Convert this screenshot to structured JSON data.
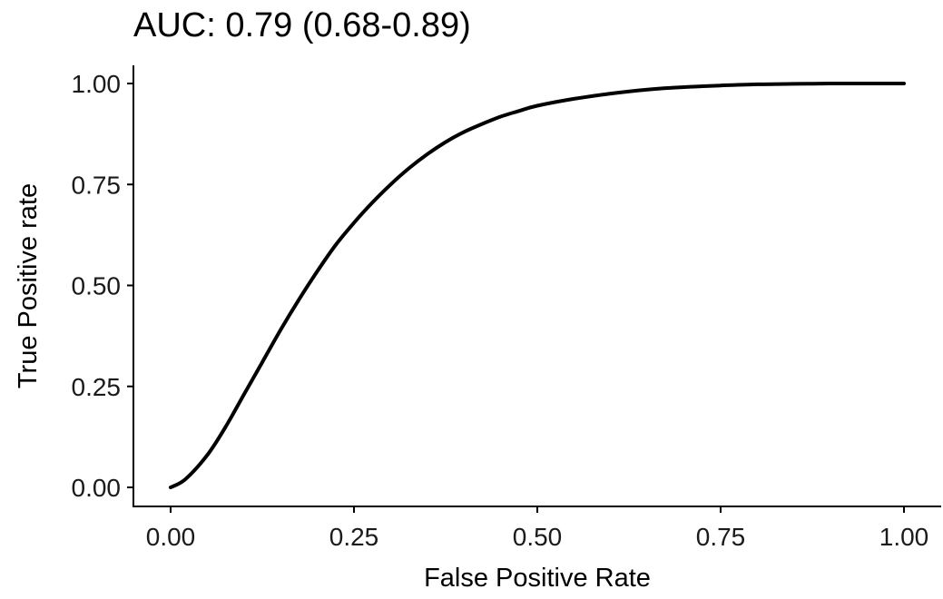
{
  "chart_data": {
    "type": "line",
    "title": "AUC: 0.79 (0.68-0.89)",
    "xlabel": "False Positive Rate",
    "ylabel": "True Positive rate",
    "xlim": [
      0,
      1
    ],
    "ylim": [
      0,
      1
    ],
    "x_ticks": [
      0,
      0.25,
      0.5,
      0.75,
      1
    ],
    "y_ticks": [
      0,
      0.25,
      0.5,
      0.75,
      1
    ],
    "x_tick_labels": [
      "0.00",
      "0.25",
      "0.50",
      "0.75",
      "1.00"
    ],
    "y_tick_labels": [
      "0.00",
      "0.25",
      "0.50",
      "0.75",
      "1.00"
    ],
    "grid": false,
    "legend": "none",
    "series": [
      {
        "color": "#000000",
        "x": [
          0.0,
          0.02,
          0.05,
          0.075,
          0.1,
          0.125,
          0.15,
          0.175,
          0.2,
          0.225,
          0.25,
          0.275,
          0.3,
          0.325,
          0.35,
          0.375,
          0.4,
          0.425,
          0.45,
          0.475,
          0.5,
          0.55,
          0.6,
          0.65,
          0.7,
          0.75,
          0.8,
          0.85,
          0.9,
          0.95,
          1.0
        ],
        "y": [
          0.0,
          0.02,
          0.08,
          0.15,
          0.23,
          0.31,
          0.39,
          0.465,
          0.535,
          0.6,
          0.655,
          0.705,
          0.75,
          0.79,
          0.825,
          0.855,
          0.88,
          0.9,
          0.918,
          0.932,
          0.945,
          0.962,
          0.975,
          0.985,
          0.991,
          0.995,
          0.998,
          0.999,
          1.0,
          1.0,
          1.0
        ]
      }
    ]
  }
}
